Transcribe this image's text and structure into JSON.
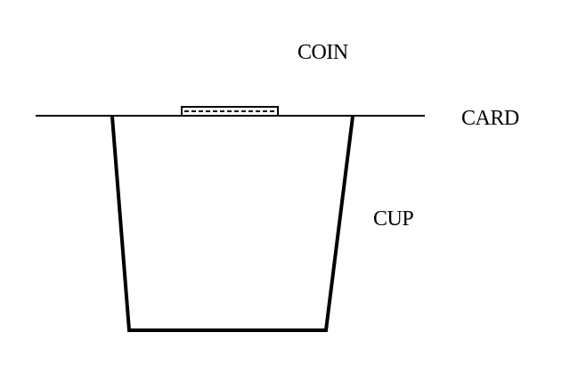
{
  "labels": {
    "coin": "COIN",
    "card": "CARD",
    "cup": "CUP"
  },
  "colors": {
    "ink": "#000000",
    "background": "#ffffff"
  }
}
